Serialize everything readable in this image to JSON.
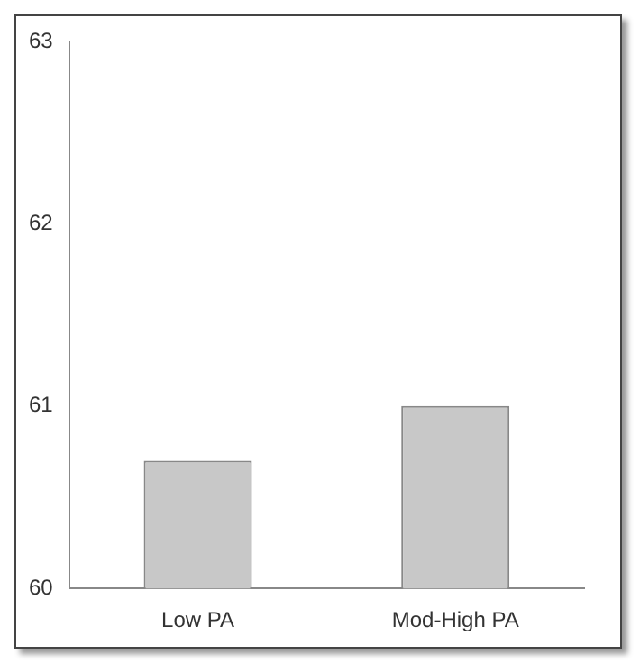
{
  "chart_data": {
    "type": "bar",
    "categories": [
      "Low PA",
      "Mod-High PA"
    ],
    "values": [
      60.7,
      61.0
    ],
    "colors": [
      "#c8c8c8",
      "#c8c8c8"
    ],
    "ylim": [
      60,
      63
    ],
    "yticks": [
      60,
      61,
      62,
      63
    ],
    "grid": false,
    "legend": false
  }
}
